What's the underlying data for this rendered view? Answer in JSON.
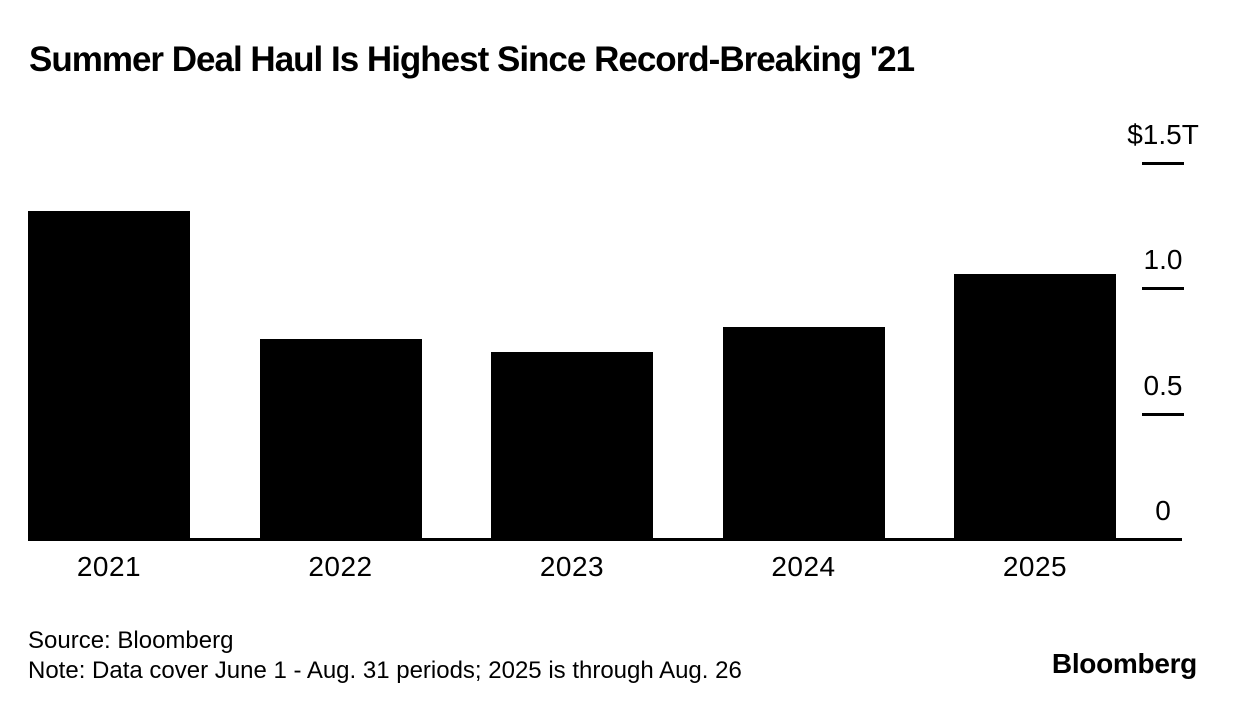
{
  "chart_data": {
    "type": "bar",
    "title": "Summer Deal Haul Is Highest Since Record-Breaking '21",
    "categories": [
      "2021",
      "2022",
      "2023",
      "2024",
      "2025"
    ],
    "values": [
      1.31,
      0.8,
      0.75,
      0.85,
      1.06
    ],
    "unit": "trillions of US dollars",
    "xlabel": "",
    "ylabel": "",
    "ylim": [
      0,
      1.5
    ],
    "yticks": [
      {
        "label": "$1.5T",
        "value": 1.5
      },
      {
        "label": "1.0",
        "value": 1.0
      },
      {
        "label": "0.5",
        "value": 0.5
      },
      {
        "label": "0",
        "value": 0
      }
    ],
    "grid": "off",
    "legend": "none",
    "bar_color": "#000000",
    "axis_side": "right"
  },
  "footer": {
    "source": "Source: Bloomberg",
    "note": "Note: Data cover June 1 - Aug. 31 periods; 2025 is through Aug. 26",
    "brand": "Bloomberg"
  }
}
